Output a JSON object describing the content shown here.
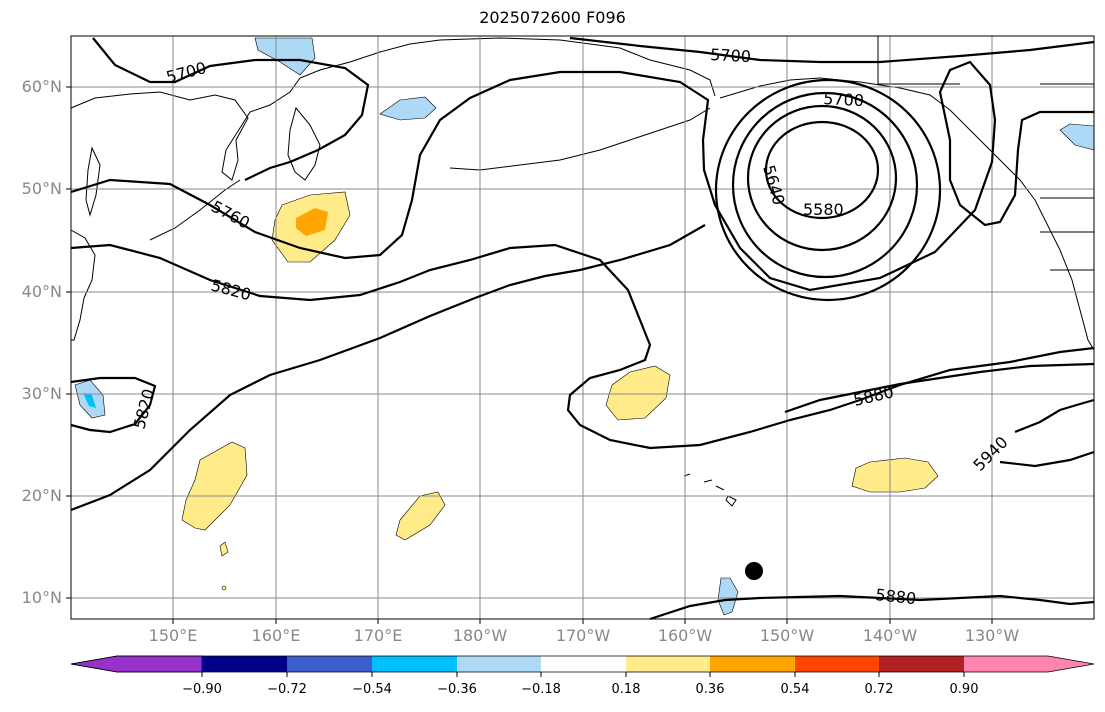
{
  "title": "2025072600 F096",
  "map": {
    "lat_labels": [
      "60°N",
      "50°N",
      "40°N",
      "30°N",
      "20°N",
      "10°N"
    ],
    "lon_labels": [
      "150°E",
      "160°E",
      "170°E",
      "180°W",
      "170°W",
      "160°W",
      "150°W",
      "140°W",
      "130°W"
    ],
    "contour_labels": [
      "5700",
      "5700",
      "5700",
      "5760",
      "5820",
      "5820",
      "5640",
      "5580",
      "5880",
      "5940",
      "5880"
    ],
    "gridlines": true
  },
  "colorbar": {
    "ticks": [
      "−0.90",
      "−0.72",
      "−0.54",
      "−0.36",
      "−0.18",
      "0.18",
      "0.36",
      "0.54",
      "0.72",
      "0.90"
    ],
    "colors": [
      "#9932CC",
      "#00008B",
      "#3A5FCD",
      "#00BFFF",
      "#ADD8F6",
      "#FFFFFF",
      "#FFEB8A",
      "#FFA500",
      "#FF4500",
      "#B22222",
      "#FF85B0"
    ]
  }
}
